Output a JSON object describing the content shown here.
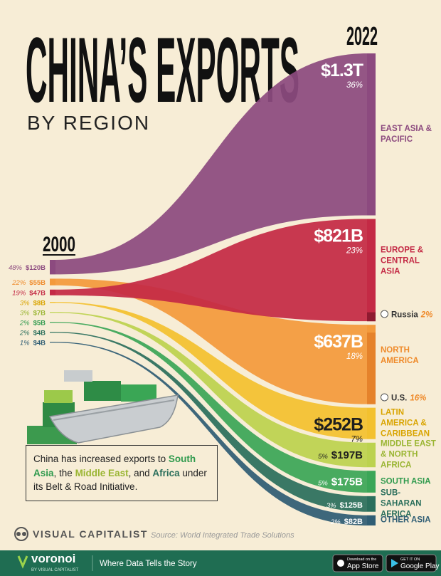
{
  "chart_data": {
    "type": "sankey",
    "title": "CHINA’S EXPORTS",
    "subtitle": "BY REGION",
    "start_label": "2000",
    "end_label": "2022",
    "series": [
      {
        "name": "EAST ASIA & PACIFIC",
        "color": "#8c4a7f",
        "text_color": "#ffffff",
        "label_color": "#8c4a7f",
        "values": [
          120,
          1300
        ],
        "value_labels": [
          "$120B",
          "$1.3T"
        ],
        "shares": [
          48,
          36
        ],
        "share_labels": [
          "48%",
          "36%"
        ]
      },
      {
        "name": "EUROPE & CENTRAL ASIA",
        "color": "#c42a45",
        "text_color": "#ffffff",
        "label_color": "#c42a45",
        "values": [
          47,
          821
        ],
        "value_labels": [
          "$47B",
          "$821B"
        ],
        "shares": [
          19,
          23
        ],
        "share_labels": [
          "19%",
          "23%"
        ],
        "note": {
          "text": "Russia",
          "value": 2,
          "label": "2%",
          "color": "#8e1a30"
        }
      },
      {
        "name": "NORTH AMERICA",
        "color": "#f39a3c",
        "text_color": "#ffffff",
        "label_color": "#ef8a2a",
        "values": [
          55,
          637
        ],
        "value_labels": [
          "$55B",
          "$637B"
        ],
        "shares": [
          22,
          18
        ],
        "share_labels": [
          "22%",
          "18%"
        ],
        "note": {
          "text": "U.S.",
          "value": 16,
          "label": "16%",
          "color": "#e5822b"
        }
      },
      {
        "name": "LATIN AMERICA & CARIBBEAN",
        "color": "#f3c12f",
        "text_color": "#1e1e1e",
        "label_color": "#d9a400",
        "values": [
          8,
          252
        ],
        "value_labels": [
          "$8B",
          "$252B"
        ],
        "shares": [
          3,
          7
        ],
        "share_labels": [
          "3%",
          "7%"
        ]
      },
      {
        "name": "MIDDLE EAST & NORTH AFRICA",
        "color": "#bcd24f",
        "text_color": "#1e1e1e",
        "label_color": "#9ab532",
        "values": [
          7,
          197
        ],
        "value_labels": [
          "$7B",
          "$197B"
        ],
        "shares": [
          3,
          5
        ],
        "share_labels": [
          "3%",
          "5%"
        ]
      },
      {
        "name": "SOUTH ASIA",
        "color": "#3ba657",
        "text_color": "#ffffff",
        "label_color": "#2f9a4d",
        "values": [
          5,
          175
        ],
        "value_labels": [
          "$5B",
          "$175B"
        ],
        "shares": [
          2,
          5
        ],
        "share_labels": [
          "2%",
          "5%"
        ]
      },
      {
        "name": "SUB-SAHARAN AFRICA",
        "color": "#2b6f5c",
        "text_color": "#ffffff",
        "label_color": "#2b6f5c",
        "values": [
          4,
          125
        ],
        "value_labels": [
          "$4B",
          "$125B"
        ],
        "shares": [
          2,
          3
        ],
        "share_labels": [
          "2%",
          "3%"
        ]
      },
      {
        "name": "OTHER ASIA",
        "color": "#2f5d74",
        "text_color": "#ffffff",
        "label_color": "#2f5d74",
        "values": [
          4,
          82
        ],
        "value_labels": [
          "$4B",
          "$82B"
        ],
        "shares": [
          1,
          2
        ],
        "share_labels": [
          "1%",
          "2%"
        ]
      }
    ]
  },
  "note": {
    "parts": [
      {
        "text": "China has increased exports to "
      },
      {
        "text": "South Asia",
        "color": "#2f9a4d"
      },
      {
        "text": ", the "
      },
      {
        "text": "Middle East",
        "color": "#9ab532"
      },
      {
        "text": ", and "
      },
      {
        "text": "Africa",
        "color": "#2b6f5c"
      },
      {
        "text": " under its Belt & Road Initiative."
      }
    ]
  },
  "footer": {
    "brand": "VISUAL CAPITALIST",
    "source": "Source: World Integrated Trade Solutions",
    "bar_brand": "voronoi",
    "bar_brand_sub": "BY VISUAL CAPITALIST",
    "tagline": "Where Data Tells the Story",
    "app_store_small": "Download on the",
    "app_store": "App Store",
    "google_play_small": "GET IT ON",
    "google_play": "Google Play"
  }
}
